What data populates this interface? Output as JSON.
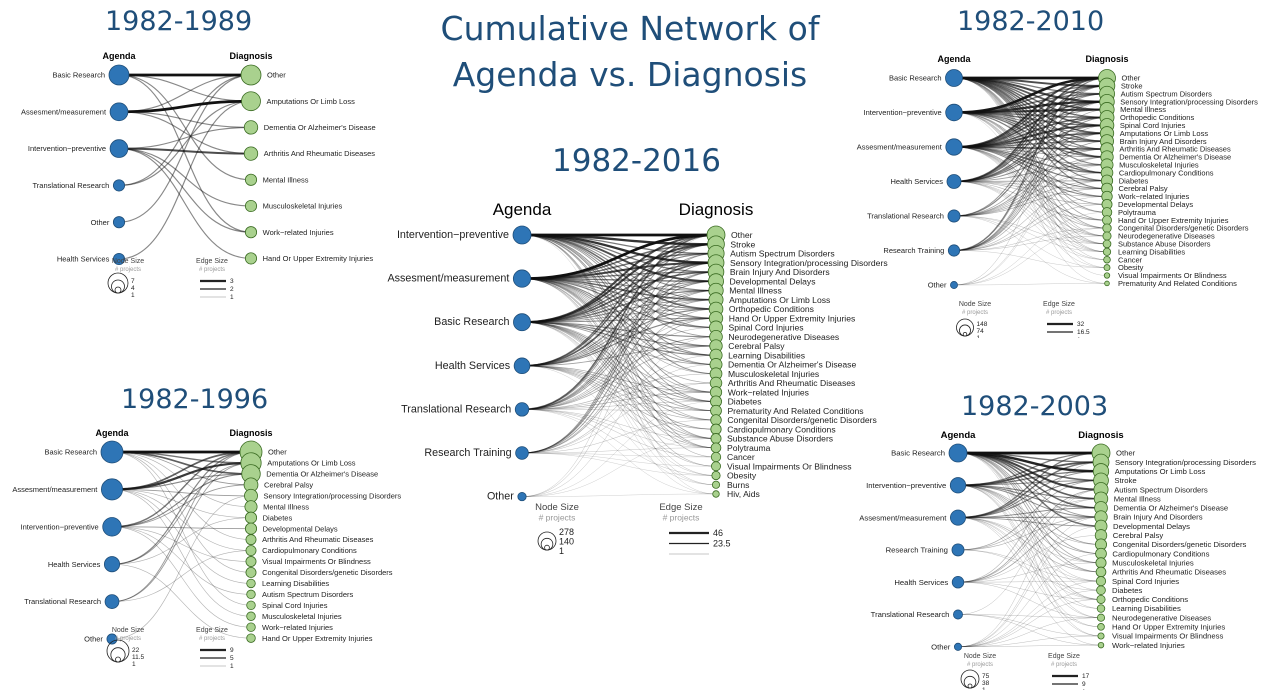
{
  "title_lines": [
    "Cumulative Network of",
    "Agenda vs. Diagnosis"
  ],
  "colors": {
    "agenda_node": "#2e75b6",
    "diagnosis_node": "#a9d18e",
    "edge": "#111111",
    "title": "#1f4e79"
  },
  "panels": [
    {
      "id": "p1982_1989",
      "title": "1982-1989",
      "agenda_header": "Agenda",
      "diagnosis_header": "Diagnosis",
      "agenda": [
        {
          "label": "Basic Research",
          "size": 7
        },
        {
          "label": "Assesment/measurement",
          "size": 5
        },
        {
          "label": "Intervention−preventive",
          "size": 5
        },
        {
          "label": "Translational Research",
          "size": 1
        },
        {
          "label": "Other",
          "size": 1
        },
        {
          "label": "Health Services",
          "size": 1
        }
      ],
      "diagnosis": [
        {
          "label": "Other",
          "size": 7
        },
        {
          "label": "Amputations Or Limb Loss",
          "size": 6
        },
        {
          "label": "Dementia Or Alzheimer's Disease",
          "size": 2
        },
        {
          "label": "Arthritis And Rheumatic Diseases",
          "size": 2
        },
        {
          "label": "Mental Illness",
          "size": 1
        },
        {
          "label": "Musculoskeletal Injuries",
          "size": 1
        },
        {
          "label": "Work−related Injuries",
          "size": 1
        },
        {
          "label": "Hand Or Upper Extremity Injuries",
          "size": 1
        }
      ],
      "edges": [
        [
          0,
          0,
          3
        ],
        [
          0,
          1,
          1
        ],
        [
          0,
          4,
          1
        ],
        [
          0,
          6,
          1
        ],
        [
          1,
          1,
          3
        ],
        [
          1,
          0,
          1
        ],
        [
          1,
          2,
          1
        ],
        [
          1,
          3,
          1
        ],
        [
          2,
          3,
          2
        ],
        [
          2,
          2,
          1
        ],
        [
          2,
          5,
          1
        ],
        [
          2,
          6,
          1
        ],
        [
          2,
          7,
          1
        ],
        [
          3,
          0,
          1
        ],
        [
          3,
          1,
          1
        ],
        [
          4,
          0,
          1
        ],
        [
          5,
          1,
          1
        ]
      ],
      "node_legend": {
        "title": "Node Size",
        "subtitle": "# projects",
        "values": [
          "7",
          "4",
          "1"
        ]
      },
      "edge_legend": {
        "title": "Edge Size",
        "subtitle": "# projects",
        "values": [
          "3",
          "2",
          "1"
        ]
      }
    },
    {
      "id": "p1982_1996",
      "title": "1982-1996",
      "agenda_header": "Agenda",
      "diagnosis_header": "Diagnosis",
      "agenda": [
        {
          "label": "Basic Research",
          "size": 22
        },
        {
          "label": "Assesment/measurement",
          "size": 20
        },
        {
          "label": "Intervention−preventive",
          "size": 14
        },
        {
          "label": "Health Services",
          "size": 8
        },
        {
          "label": "Translational Research",
          "size": 6
        },
        {
          "label": "Other",
          "size": 2
        }
      ],
      "diagnosis": [
        {
          "label": "Other",
          "size": 22
        },
        {
          "label": "Amputations Or Limb Loss",
          "size": 18
        },
        {
          "label": "Dementia Or Alzheimer's Disease",
          "size": 14
        },
        {
          "label": "Cerebral Palsy",
          "size": 6
        },
        {
          "label": "Sensory Integration/processing Disorders",
          "size": 5
        },
        {
          "label": "Mental Illness",
          "size": 4
        },
        {
          "label": "Diabetes",
          "size": 3
        },
        {
          "label": "Developmental Delays",
          "size": 3
        },
        {
          "label": "Arthritis And Rheumatic Diseases",
          "size": 2
        },
        {
          "label": "Cardiopulmonary Conditions",
          "size": 2
        },
        {
          "label": "Visual Impairments Or Blindness",
          "size": 2
        },
        {
          "label": "Congenital Disorders/genetic Disorders",
          "size": 2
        },
        {
          "label": "Learning Disabilities",
          "size": 1
        },
        {
          "label": "Autism Spectrum Disorders",
          "size": 1
        },
        {
          "label": "Spinal Cord Injuries",
          "size": 1
        },
        {
          "label": "Musculoskeletal Injuries",
          "size": 1
        },
        {
          "label": "Work−related Injuries",
          "size": 1
        },
        {
          "label": "Hand Or Upper Extremity Injuries",
          "size": 1
        }
      ],
      "edges": [
        [
          0,
          0,
          9
        ],
        [
          0,
          1,
          4
        ],
        [
          0,
          2,
          5
        ],
        [
          0,
          3,
          2
        ],
        [
          0,
          5,
          1
        ],
        [
          0,
          8,
          1
        ],
        [
          0,
          11,
          1
        ],
        [
          0,
          14,
          1
        ],
        [
          1,
          1,
          7
        ],
        [
          1,
          0,
          5
        ],
        [
          1,
          2,
          3
        ],
        [
          1,
          4,
          2
        ],
        [
          1,
          6,
          1
        ],
        [
          1,
          9,
          1
        ],
        [
          1,
          12,
          1
        ],
        [
          1,
          15,
          1
        ],
        [
          2,
          0,
          4
        ],
        [
          2,
          2,
          3
        ],
        [
          2,
          3,
          2
        ],
        [
          2,
          7,
          2
        ],
        [
          2,
          10,
          1
        ],
        [
          2,
          13,
          1
        ],
        [
          2,
          16,
          1
        ],
        [
          3,
          0,
          3
        ],
        [
          3,
          1,
          2
        ],
        [
          3,
          6,
          1
        ],
        [
          3,
          17,
          1
        ],
        [
          4,
          0,
          2
        ],
        [
          4,
          1,
          2
        ],
        [
          4,
          9,
          1
        ],
        [
          5,
          4,
          1
        ]
      ],
      "node_legend": {
        "title": "Node Size",
        "subtitle": "# projects",
        "values": [
          "22",
          "11.5",
          "1"
        ]
      },
      "edge_legend": {
        "title": "Edge Size",
        "subtitle": "# projects",
        "values": [
          "9",
          "5",
          "1"
        ]
      }
    },
    {
      "id": "p1982_2016",
      "title": "1982-2016",
      "agenda_header": "Agenda",
      "diagnosis_header": "Diagnosis",
      "agenda": [
        {
          "label": "Intervention−preventive",
          "size": 278
        },
        {
          "label": "Assesment/measurement",
          "size": 250
        },
        {
          "label": "Basic Research",
          "size": 240
        },
        {
          "label": "Health Services",
          "size": 190
        },
        {
          "label": "Translational Research",
          "size": 120
        },
        {
          "label": "Research Training",
          "size": 100
        },
        {
          "label": "Other",
          "size": 20
        }
      ],
      "diagnosis": [
        {
          "label": "Other",
          "size": 278
        },
        {
          "label": "Stroke",
          "size": 230
        },
        {
          "label": "Autism Spectrum Disorders",
          "size": 210
        },
        {
          "label": "Sensory Integration/processing Disorders",
          "size": 200
        },
        {
          "label": "Brain Injury And Disorders",
          "size": 190
        },
        {
          "label": "Developmental Delays",
          "size": 170
        },
        {
          "label": "Mental Illness",
          "size": 150
        },
        {
          "label": "Amputations Or Limb Loss",
          "size": 140
        },
        {
          "label": "Orthopedic Conditions",
          "size": 130
        },
        {
          "label": "Hand Or Upper Extremity Injuries",
          "size": 120
        },
        {
          "label": "Spinal Cord Injuries",
          "size": 110
        },
        {
          "label": "Neurodegenerative Diseases",
          "size": 100
        },
        {
          "label": "Cerebral Palsy",
          "size": 95
        },
        {
          "label": "Learning Disabilities",
          "size": 90
        },
        {
          "label": "Dementia Or Alzheimer's Disease",
          "size": 85
        },
        {
          "label": "Musculoskeletal Injuries",
          "size": 80
        },
        {
          "label": "Arthritis And Rheumatic Diseases",
          "size": 75
        },
        {
          "label": "Work−related Injuries",
          "size": 70
        },
        {
          "label": "Diabetes",
          "size": 65
        },
        {
          "label": "Prematurity And Related Conditions",
          "size": 60
        },
        {
          "label": "Congenital Disorders/genetic Disorders",
          "size": 55
        },
        {
          "label": "Cardiopulmonary Conditions",
          "size": 50
        },
        {
          "label": "Substance Abuse Disorders",
          "size": 45
        },
        {
          "label": "Polytrauma",
          "size": 40
        },
        {
          "label": "Cancer",
          "size": 35
        },
        {
          "label": "Visual Impairments Or Blindness",
          "size": 30
        },
        {
          "label": "Obesity",
          "size": 20
        },
        {
          "label": "Burns",
          "size": 10
        },
        {
          "label": "Hiv, Aids",
          "size": 5
        }
      ],
      "node_legend": {
        "title": "Node Size",
        "subtitle": "# projects",
        "values": [
          "278",
          "140",
          "1"
        ]
      },
      "edge_legend": {
        "title": "Edge Size",
        "subtitle": "# projects",
        "values": [
          "46",
          "23.5",
          ""
        ]
      }
    },
    {
      "id": "p1982_2010",
      "title": "1982-2010",
      "agenda_header": "Agenda",
      "diagnosis_header": "Diagnosis",
      "agenda": [
        {
          "label": "Basic Research",
          "size": 148
        },
        {
          "label": "Intervention−preventive",
          "size": 140
        },
        {
          "label": "Assesment/measurement",
          "size": 135
        },
        {
          "label": "Health Services",
          "size": 90
        },
        {
          "label": "Translational Research",
          "size": 60
        },
        {
          "label": "Research Training",
          "size": 50
        },
        {
          "label": "Other",
          "size": 10
        }
      ],
      "diagnosis": [
        {
          "label": "Other",
          "size": 148
        },
        {
          "label": "Stroke",
          "size": 120
        },
        {
          "label": "Autism Spectrum Disorders",
          "size": 110
        },
        {
          "label": "Sensory Integration/processing Disorders",
          "size": 100
        },
        {
          "label": "Mental Illness",
          "size": 95
        },
        {
          "label": "Orthopedic Conditions",
          "size": 90
        },
        {
          "label": "Spinal Cord Injuries",
          "size": 85
        },
        {
          "label": "Amputations Or Limb Loss",
          "size": 80
        },
        {
          "label": "Brain Injury And Disorders",
          "size": 75
        },
        {
          "label": "Arthritis And Rheumatic Diseases",
          "size": 70
        },
        {
          "label": "Dementia Or Alzheimer's Disease",
          "size": 65
        },
        {
          "label": "Musculoskeletal Injuries",
          "size": 60
        },
        {
          "label": "Cardiopulmonary Conditions",
          "size": 55
        },
        {
          "label": "Diabetes",
          "size": 50
        },
        {
          "label": "Cerebral Palsy",
          "size": 45
        },
        {
          "label": "Work−related Injuries",
          "size": 40
        },
        {
          "label": "Developmental Delays",
          "size": 35
        },
        {
          "label": "Polytrauma",
          "size": 30
        },
        {
          "label": "Hand Or Upper Extremity Injuries",
          "size": 25
        },
        {
          "label": "Congenital Disorders/genetic Disorders",
          "size": 20
        },
        {
          "label": "Neurodegenerative Diseases",
          "size": 18
        },
        {
          "label": "Substance Abuse Disorders",
          "size": 15
        },
        {
          "label": "Learning Disabilities",
          "size": 12
        },
        {
          "label": "Cancer",
          "size": 8
        },
        {
          "label": "Obesity",
          "size": 5
        },
        {
          "label": "Visual Impairments Or Blindness",
          "size": 3
        },
        {
          "label": "Prematurity And Related Conditions",
          "size": 1
        }
      ],
      "node_legend": {
        "title": "Node Size",
        "subtitle": "# projects",
        "values": [
          "148",
          "74",
          "1"
        ]
      },
      "edge_legend": {
        "title": "Edge Size",
        "subtitle": "# projects",
        "values": [
          "32",
          "16.5",
          "1"
        ]
      }
    },
    {
      "id": "p1982_2003",
      "title": "1982-2003",
      "agenda_header": "Agenda",
      "diagnosis_header": "Diagnosis",
      "agenda": [
        {
          "label": "Basic Research",
          "size": 75
        },
        {
          "label": "Intervention−preventive",
          "size": 50
        },
        {
          "label": "Assesment/measurement",
          "size": 48
        },
        {
          "label": "Research Training",
          "size": 25
        },
        {
          "label": "Health Services",
          "size": 22
        },
        {
          "label": "Translational Research",
          "size": 10
        },
        {
          "label": "Other",
          "size": 4
        }
      ],
      "diagnosis": [
        {
          "label": "Other",
          "size": 75
        },
        {
          "label": "Sensory Integration/processing Disorders",
          "size": 55
        },
        {
          "label": "Amputations Or Limb Loss",
          "size": 50
        },
        {
          "label": "Stroke",
          "size": 45
        },
        {
          "label": "Autism Spectrum Disorders",
          "size": 40
        },
        {
          "label": "Mental Illness",
          "size": 35
        },
        {
          "label": "Dementia Or Alzheimer's Disease",
          "size": 30
        },
        {
          "label": "Brain Injury And Disorders",
          "size": 28
        },
        {
          "label": "Developmental Delays",
          "size": 25
        },
        {
          "label": "Cerebral Palsy",
          "size": 22
        },
        {
          "label": "Congenital Disorders/genetic Disorders",
          "size": 20
        },
        {
          "label": "Cardiopulmonary Conditions",
          "size": 18
        },
        {
          "label": "Musculoskeletal Injuries",
          "size": 15
        },
        {
          "label": "Arthritis And Rheumatic Diseases",
          "size": 13
        },
        {
          "label": "Spinal Cord Injuries",
          "size": 11
        },
        {
          "label": "Diabetes",
          "size": 9
        },
        {
          "label": "Orthopedic Conditions",
          "size": 7
        },
        {
          "label": "Learning Disabilities",
          "size": 5
        },
        {
          "label": "Neurodegenerative Diseases",
          "size": 4
        },
        {
          "label": "Hand Or Upper Extremity Injuries",
          "size": 3
        },
        {
          "label": "Visual Impairments Or Blindness",
          "size": 2
        },
        {
          "label": "Work−related Injuries",
          "size": 1
        }
      ],
      "node_legend": {
        "title": "Node Size",
        "subtitle": "# projects",
        "values": [
          "75",
          "38",
          "1"
        ]
      },
      "edge_legend": {
        "title": "Edge Size",
        "subtitle": "# projects",
        "values": [
          "17",
          "9",
          "1"
        ]
      }
    }
  ]
}
